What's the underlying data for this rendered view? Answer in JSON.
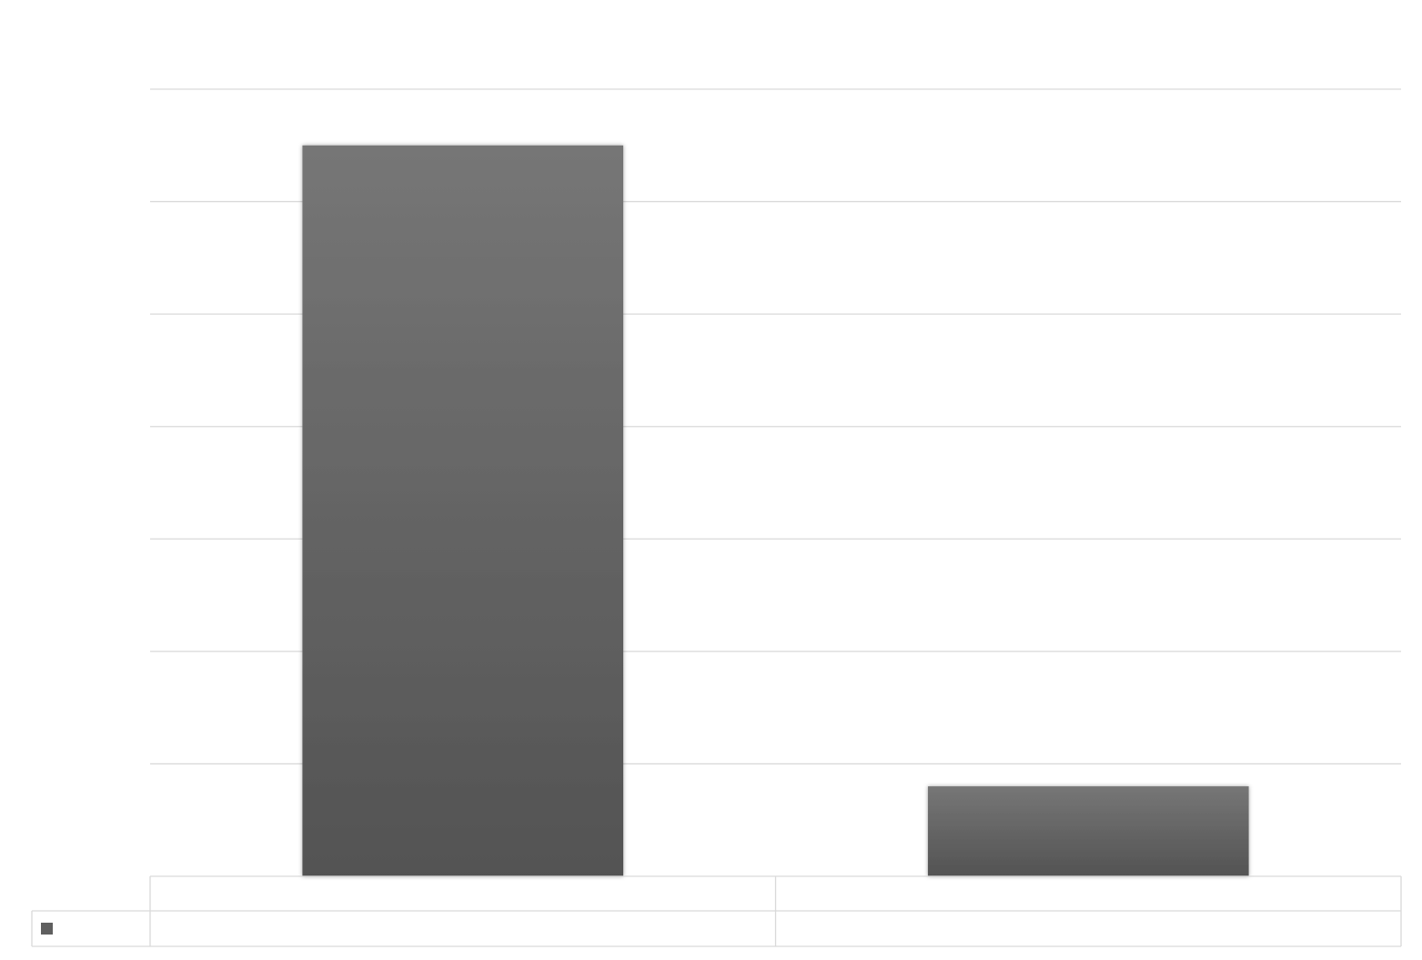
{
  "chart_data": {
    "type": "bar",
    "title": "",
    "xlabel": "",
    "ylabel": "",
    "categories": [
      "",
      ""
    ],
    "series": [
      {
        "name": "",
        "values": [
          6.5,
          0.8
        ],
        "color": "#5f5f5f"
      }
    ],
    "ylim": [
      0,
      7
    ],
    "y_ticks": [
      0,
      1,
      2,
      3,
      4,
      5,
      6,
      7
    ],
    "y_tick_labels": [
      "",
      "",
      "",
      "",
      "",
      "",
      "",
      ""
    ],
    "grid": true,
    "legend": "data-table-left",
    "data_table": true
  }
}
